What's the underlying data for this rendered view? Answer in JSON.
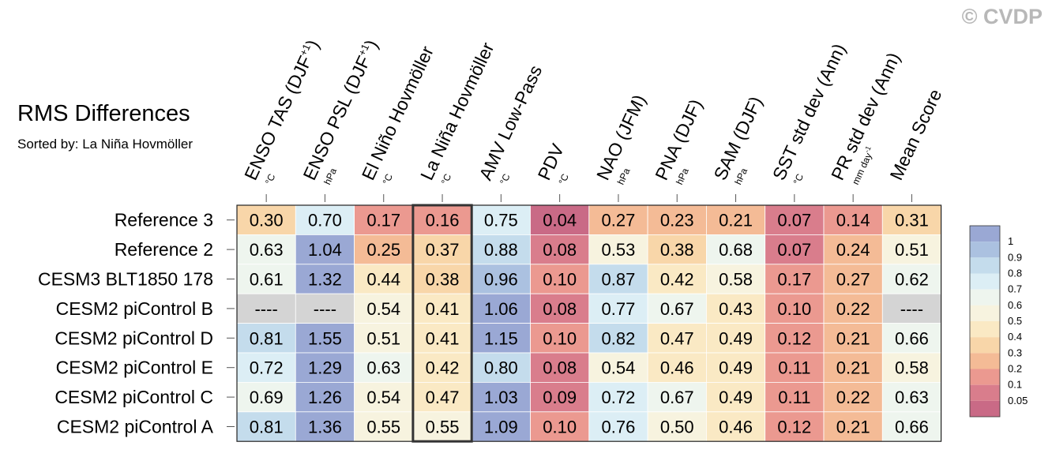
{
  "watermark": "© CVDP",
  "chart_data": {
    "type": "heatmap",
    "title": "RMS Differences",
    "subtitle": "Sorted by: La Niña Hovmöller",
    "columns": [
      {
        "label": "ENSO TAS (DJF",
        "sup": "+1",
        "close": ")",
        "unit": "°C"
      },
      {
        "label": "ENSO PSL (DJF",
        "sup": "+1",
        "close": ")",
        "unit": "hPa"
      },
      {
        "label": "El Niño Hovmöller",
        "unit": "°C"
      },
      {
        "label": "La Niña Hovmöller",
        "unit": "°C"
      },
      {
        "label": "AMV Low-Pass",
        "unit": "°C"
      },
      {
        "label": "PDV",
        "unit": "°C"
      },
      {
        "label": "NAO (JFM)",
        "unit": "hPa"
      },
      {
        "label": "PNA (DJF)",
        "unit": "hPa"
      },
      {
        "label": "SAM (DJF)",
        "unit": "hPa"
      },
      {
        "label": "SST std dev (Ann)",
        "unit": "°C"
      },
      {
        "label": "PR std dev (Ann)",
        "unit": "mm day",
        "unit_sup": "-1"
      },
      {
        "label": "Mean Score",
        "unit": ""
      }
    ],
    "highlight_column": 3,
    "rows": [
      {
        "name": "Reference 3",
        "values": [
          "0.30",
          "0.70",
          "0.17",
          "0.16",
          "0.75",
          "0.04",
          "0.27",
          "0.23",
          "0.21",
          "0.07",
          "0.14",
          "0.31"
        ]
      },
      {
        "name": "Reference 2",
        "values": [
          "0.63",
          "1.04",
          "0.25",
          "0.37",
          "0.88",
          "0.08",
          "0.53",
          "0.38",
          "0.68",
          "0.07",
          "0.24",
          "0.51"
        ]
      },
      {
        "name": "CESM3 BLT1850 178",
        "values": [
          "0.61",
          "1.32",
          "0.44",
          "0.38",
          "0.96",
          "0.10",
          "0.87",
          "0.42",
          "0.58",
          "0.17",
          "0.27",
          "0.62"
        ]
      },
      {
        "name": "CESM2 piControl B",
        "values": [
          "----",
          "----",
          "0.54",
          "0.41",
          "1.06",
          "0.08",
          "0.77",
          "0.67",
          "0.43",
          "0.10",
          "0.22",
          "----"
        ]
      },
      {
        "name": "CESM2 piControl D",
        "values": [
          "0.81",
          "1.55",
          "0.51",
          "0.41",
          "1.15",
          "0.10",
          "0.82",
          "0.47",
          "0.49",
          "0.12",
          "0.21",
          "0.66"
        ]
      },
      {
        "name": "CESM2 piControl E",
        "values": [
          "0.72",
          "1.29",
          "0.63",
          "0.42",
          "0.80",
          "0.08",
          "0.54",
          "0.46",
          "0.49",
          "0.11",
          "0.21",
          "0.58"
        ]
      },
      {
        "name": "CESM2 piControl C",
        "values": [
          "0.69",
          "1.26",
          "0.54",
          "0.47",
          "1.03",
          "0.09",
          "0.72",
          "0.67",
          "0.49",
          "0.11",
          "0.22",
          "0.63"
        ]
      },
      {
        "name": "CESM2 piControl A",
        "values": [
          "0.81",
          "1.36",
          "0.55",
          "0.55",
          "1.09",
          "0.10",
          "0.76",
          "0.50",
          "0.46",
          "0.12",
          "0.21",
          "0.66"
        ]
      }
    ],
    "colorbar": {
      "labels": [
        "1",
        "0.9",
        "0.8",
        "0.7",
        "0.6",
        "0.5",
        "0.4",
        "0.3",
        "0.2",
        "0.1",
        "0.05"
      ],
      "colors": [
        "#9aa8d4",
        "#abc1e0",
        "#c4dcec",
        "#dceef5",
        "#eef5ee",
        "#f7f3df",
        "#fae9c4",
        "#f8d6a9",
        "#f4bb96",
        "#eb9990",
        "#d97d8c",
        "#c96a86"
      ]
    },
    "missing_color": "#d4d4d4"
  }
}
